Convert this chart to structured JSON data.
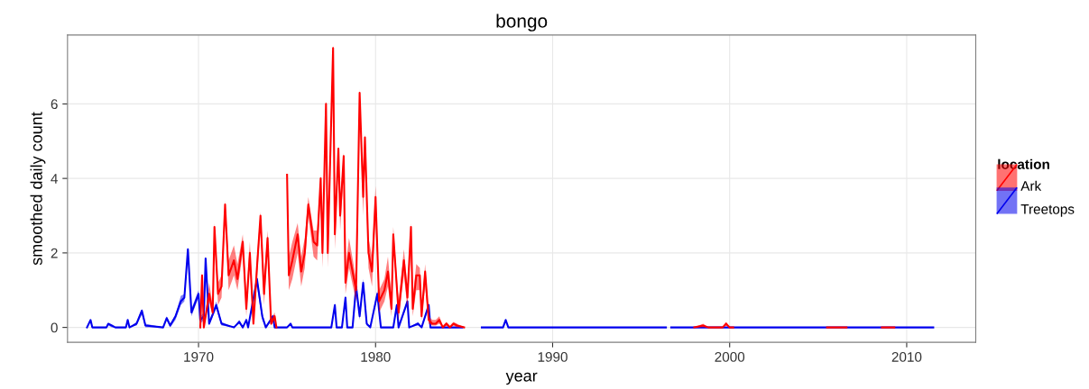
{
  "chart_data": {
    "type": "line",
    "title": "bongo",
    "xlabel": "year",
    "ylabel": "smoothed daily count",
    "legend_title": "location",
    "legend": "right",
    "grid": true,
    "marker": "none",
    "line_style": "solid",
    "xlim": [
      1962.6,
      2013.9
    ],
    "ylim": [
      -0.4,
      7.85
    ],
    "xticks": [
      1970,
      1980,
      1990,
      2000,
      2010
    ],
    "yticks": [
      0,
      2,
      4,
      6
    ],
    "series": [
      {
        "name": "Ark",
        "color": "#ff0000",
        "x": [
          1970.1,
          1970.2,
          1970.3,
          1970.6,
          1970.8,
          1970.9,
          1971.1,
          1971.3,
          1971.5,
          1971.7,
          1972.0,
          1972.2,
          1972.5,
          1972.7,
          1972.9,
          1973.1,
          1973.3,
          1973.5,
          1973.7,
          1973.9,
          1974.1,
          1974.3,
          1974.4,
          1974.7,
          1975.0,
          1975.1,
          1975.3,
          1975.6,
          1975.8,
          1976.0,
          1976.2,
          1976.5,
          1976.7,
          1976.9,
          1977.0,
          1977.2,
          1977.3,
          1977.6,
          1977.7,
          1977.9,
          1978.0,
          1978.2,
          1978.3,
          1978.5,
          1978.9,
          1979.1,
          1979.3,
          1979.4,
          1979.6,
          1979.8,
          1980.0,
          1980.2,
          1980.5,
          1980.7,
          1980.9,
          1981.0,
          1981.3,
          1981.6,
          1981.8,
          1982.0,
          1982.1,
          1982.3,
          1982.5,
          1982.6,
          1982.8,
          1983.0,
          1983.2,
          1983.4,
          1983.6,
          1983.8,
          1984.0,
          1984.2,
          1984.4,
          1984.6,
          1985.0,
          1990.0,
          1998.0,
          1998.5,
          1998.8,
          1999.6,
          1999.8,
          2000.0,
          2000.2,
          2003.0,
          2005.5,
          2006.6,
          2007.5,
          2008.6,
          2009.3
        ],
        "values": [
          0,
          1.4,
          0,
          0.9,
          0.4,
          2.7,
          0.9,
          1.1,
          3.3,
          1.4,
          1.8,
          1.3,
          2.3,
          0.5,
          2.0,
          0.1,
          1.6,
          3.0,
          0.9,
          2.4,
          0.1,
          0.3,
          0,
          null,
          4.1,
          1.4,
          1.8,
          2.5,
          1.5,
          2.0,
          3.3,
          2.3,
          2.2,
          4.0,
          2.0,
          6.0,
          2.0,
          7.5,
          2.5,
          4.8,
          3.0,
          4.6,
          1.2,
          2.0,
          1.0,
          6.3,
          3.5,
          5.1,
          2.0,
          1.5,
          3.5,
          0.7,
          1.0,
          1.5,
          0.5,
          2.5,
          0.4,
          1.8,
          0.8,
          2.7,
          0.5,
          1.4,
          1.4,
          0.3,
          1.5,
          0.2,
          0.1,
          0.1,
          0.2,
          0,
          0.1,
          0,
          0.1,
          0.05,
          0,
          null,
          0,
          0.05,
          0,
          0,
          0.1,
          0,
          0,
          null,
          0,
          0,
          null,
          0,
          0
        ],
        "lower": [
          0,
          1.2,
          0,
          0.7,
          0.3,
          2.5,
          0.6,
          0.8,
          3.0,
          1.0,
          1.4,
          1.0,
          2.0,
          0.3,
          1.7,
          0.05,
          1.3,
          2.7,
          0.6,
          2.1,
          0.05,
          0.2,
          0,
          null,
          3.8,
          1.0,
          1.3,
          2.0,
          1.1,
          1.6,
          3.0,
          1.9,
          1.8,
          3.7,
          1.6,
          5.7,
          1.6,
          7.2,
          2.1,
          4.4,
          2.6,
          4.2,
          0.9,
          1.6,
          0.7,
          6.0,
          3.0,
          4.7,
          1.6,
          1.1,
          3.1,
          0.4,
          0.7,
          1.1,
          0.3,
          2.2,
          0.2,
          1.4,
          0.5,
          2.3,
          0.3,
          1.0,
          1.0,
          0.2,
          1.1,
          0.1,
          0.05,
          0.05,
          0.1,
          0,
          0.05,
          0,
          0.05,
          0,
          0,
          null,
          0,
          0,
          0,
          0,
          0.05,
          0,
          0,
          null,
          null,
          null,
          null,
          null,
          null
        ],
        "upper": [
          0,
          1.5,
          0,
          1.2,
          0.6,
          2.8,
          1.2,
          1.4,
          3.4,
          1.8,
          2.2,
          1.7,
          2.5,
          0.8,
          2.3,
          0.2,
          1.9,
          3.1,
          1.3,
          2.6,
          0.2,
          0.4,
          0,
          null,
          4.2,
          1.9,
          2.3,
          2.8,
          1.9,
          2.4,
          3.5,
          2.6,
          2.6,
          4.1,
          2.4,
          6.1,
          2.4,
          7.6,
          2.9,
          4.9,
          3.4,
          4.7,
          1.6,
          2.4,
          1.3,
          6.4,
          3.9,
          5.2,
          2.4,
          1.9,
          3.8,
          1.0,
          1.3,
          1.9,
          0.8,
          2.7,
          0.7,
          2.1,
          1.1,
          2.8,
          0.8,
          1.7,
          1.6,
          0.5,
          1.7,
          0.3,
          0.2,
          0.2,
          0.3,
          0.05,
          0.15,
          0.05,
          0.15,
          0.1,
          0,
          null,
          0,
          0.1,
          0,
          0,
          0.15,
          0,
          0,
          null,
          null,
          null,
          null,
          null,
          null
        ]
      },
      {
        "name": "Treetops",
        "color": "#0000ee",
        "x": [
          1963.7,
          1963.9,
          1964.0,
          1964.8,
          1964.9,
          1965.1,
          1965.3,
          1965.9,
          1966.0,
          1966.1,
          1966.5,
          1966.8,
          1967.0,
          1968.0,
          1968.2,
          1968.4,
          1968.7,
          1969.0,
          1969.2,
          1969.4,
          1969.6,
          1970.0,
          1970.1,
          1970.3,
          1970.4,
          1970.6,
          1971.0,
          1971.3,
          1972.0,
          1972.3,
          1972.5,
          1972.7,
          1972.8,
          1973.3,
          1973.6,
          1973.8,
          1974.2,
          1974.3,
          1975.0,
          1975.2,
          1975.3,
          1977.5,
          1977.7,
          1977.8,
          1978.1,
          1978.3,
          1978.4,
          1978.7,
          1978.9,
          1979.1,
          1979.3,
          1979.5,
          1979.7,
          1980.1,
          1980.3,
          1981.0,
          1981.2,
          1981.3,
          1981.8,
          1981.9,
          1982.4,
          1982.6,
          1983.0,
          1983.1,
          1984.9,
          1985.5,
          1986.0,
          1987.2,
          1987.35,
          1987.5,
          1996.4,
          1996.55,
          1996.7,
          2011.5
        ],
        "values": [
          0,
          0.2,
          0,
          0,
          0.1,
          0.05,
          0,
          0,
          0.2,
          0,
          0.1,
          0.45,
          0.05,
          0,
          0.25,
          0.05,
          0.3,
          0.7,
          0.8,
          2.1,
          0.4,
          0.9,
          0.2,
          0.3,
          1.85,
          0.1,
          0.6,
          0.1,
          0,
          0.15,
          0,
          0.2,
          0,
          1.3,
          0.3,
          0,
          0.3,
          0,
          0,
          0.1,
          0,
          0,
          0.6,
          0,
          0,
          0.8,
          0,
          0,
          1.1,
          0.3,
          1.2,
          0.1,
          0,
          0.9,
          0,
          0,
          0.6,
          0,
          0.7,
          0,
          0.1,
          0,
          0.6,
          0,
          0,
          null,
          0,
          0,
          0.2,
          0,
          0,
          null,
          0,
          0
        ],
        "lower": [
          0,
          0.15,
          0,
          0,
          0.05,
          0,
          0,
          0,
          0.15,
          0,
          0.05,
          0.35,
          0,
          0,
          0.2,
          0,
          0.2,
          0.6,
          0.7,
          2.0,
          0.3,
          0.8,
          0.1,
          0.2,
          1.75,
          0.05,
          0.5,
          0.05,
          0,
          0.1,
          0,
          0.15,
          0,
          1.1,
          0.2,
          0,
          0.2,
          0,
          0,
          0.05,
          0,
          0,
          0.5,
          0,
          0,
          0.7,
          0,
          0,
          1.0,
          0.2,
          1.1,
          0.05,
          0,
          0.8,
          0,
          0,
          0.5,
          0,
          0.6,
          0,
          0.05,
          0,
          0.5,
          0,
          0,
          null,
          0,
          0,
          0.15,
          0,
          0,
          null,
          null,
          null
        ],
        "upper": [
          0,
          0.2,
          0,
          0,
          0.1,
          0.05,
          0,
          0,
          0.2,
          0,
          0.15,
          0.5,
          0.1,
          0,
          0.3,
          0.1,
          0.35,
          0.85,
          0.9,
          2.1,
          0.5,
          1.0,
          0.3,
          0.4,
          1.9,
          0.15,
          0.7,
          0.15,
          0,
          0.2,
          0,
          0.25,
          0,
          1.4,
          0.4,
          0,
          0.35,
          0,
          0,
          0.1,
          0,
          0,
          0.65,
          0,
          0,
          0.85,
          0,
          0,
          1.2,
          0.4,
          1.3,
          0.15,
          0,
          1.0,
          0,
          0,
          0.65,
          0,
          0.75,
          0,
          0.15,
          0,
          0.65,
          0,
          0,
          null,
          0,
          0,
          0.2,
          0,
          0,
          null,
          null,
          null
        ]
      }
    ]
  }
}
